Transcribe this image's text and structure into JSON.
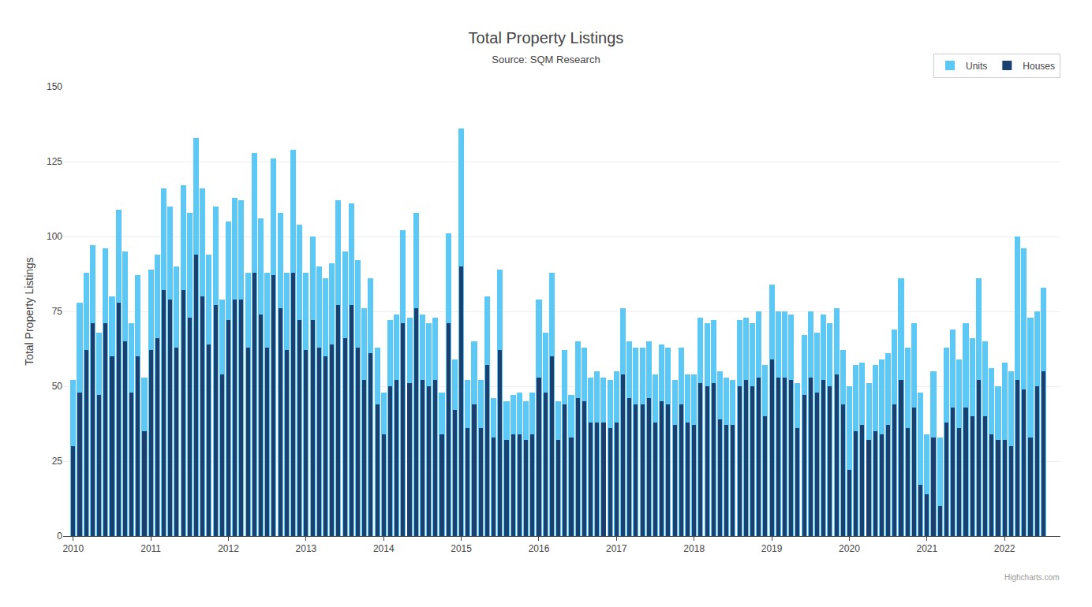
{
  "chart_data": {
    "type": "bar",
    "title": "Total Property Listings",
    "subtitle": "Source: SQM Research",
    "ylabel": "Total Property Listings",
    "annotations": [
      "Highcharts.com"
    ],
    "x": [
      2010,
      2010.083333,
      2010.166667,
      2010.25,
      2010.333333,
      2010.416667,
      2010.5,
      2010.583333,
      2010.666667,
      2010.75,
      2010.833333,
      2010.916667,
      2011,
      2011.083333,
      2011.166667,
      2011.25,
      2011.333333,
      2011.416667,
      2011.5,
      2011.583333,
      2011.666667,
      2011.75,
      2011.833333,
      2011.916667,
      2012,
      2012.083333,
      2012.166667,
      2012.25,
      2012.333333,
      2012.416667,
      2012.5,
      2012.583333,
      2012.666667,
      2012.75,
      2012.833333,
      2012.916667,
      2013,
      2013.083333,
      2013.166667,
      2013.25,
      2013.333333,
      2013.416667,
      2013.5,
      2013.583333,
      2013.666667,
      2013.75,
      2013.833333,
      2013.916667,
      2014,
      2014.083333,
      2014.166667,
      2014.25,
      2014.333333,
      2014.416667,
      2014.5,
      2014.583333,
      2014.666667,
      2014.75,
      2014.833333,
      2014.916667,
      2015,
      2015.083333,
      2015.166667,
      2015.25,
      2015.333333,
      2015.416667,
      2015.5,
      2015.583333,
      2015.666667,
      2015.75,
      2015.833333,
      2015.916667,
      2016,
      2016.083333,
      2016.166667,
      2016.25,
      2016.333333,
      2016.416667,
      2016.5,
      2016.583333,
      2016.666667,
      2016.75,
      2016.833333,
      2016.916667,
      2017,
      2017.083333,
      2017.166667,
      2017.25,
      2017.333333,
      2017.416667,
      2017.5,
      2017.583333,
      2017.666667,
      2017.75,
      2017.833333,
      2017.916667,
      2018,
      2018.083333,
      2018.166667,
      2018.25,
      2018.333333,
      2018.416667,
      2018.5,
      2018.583333,
      2018.666667,
      2018.75,
      2018.833333,
      2018.916667,
      2019,
      2019.083333,
      2019.166667,
      2019.25,
      2019.333333,
      2019.416667,
      2019.5,
      2019.583333,
      2019.666667,
      2019.75,
      2019.833333,
      2019.916667,
      2020,
      2020.083333,
      2020.166667,
      2020.25,
      2020.333333,
      2020.416667,
      2020.5,
      2020.583333,
      2020.666667,
      2020.75,
      2020.833333,
      2020.916667,
      2021,
      2021.083333,
      2021.166667,
      2021.25,
      2021.333333,
      2021.416667,
      2021.5,
      2021.583333,
      2021.666667,
      2021.75,
      2021.833333,
      2021.916667,
      2022,
      2022.083333,
      2022.166667,
      2022.25,
      2022.333333,
      2022.416667,
      2022.5
    ],
    "series": [
      {
        "name": "Units",
        "color": "#5BC8F5",
        "values": [
          52,
          78,
          88,
          97,
          68,
          96,
          80,
          109,
          95,
          71,
          87,
          53,
          89,
          94,
          116,
          110,
          90,
          117,
          108,
          133,
          116,
          94,
          110,
          79,
          105,
          113,
          112,
          88,
          128,
          106,
          88,
          126,
          108,
          88,
          129,
          104,
          88,
          100,
          90,
          86,
          91,
          112,
          95,
          111,
          92,
          76,
          86,
          63,
          48,
          72,
          74,
          102,
          73,
          108,
          74,
          71,
          73,
          48,
          101,
          59,
          136,
          52,
          65,
          52,
          80,
          46,
          89,
          45,
          47,
          48,
          45,
          48,
          79,
          68,
          88,
          45,
          62,
          47,
          65,
          63,
          53,
          55,
          53,
          52,
          55,
          76,
          65,
          63,
          63,
          65,
          54,
          64,
          63,
          52,
          63,
          54,
          54,
          73,
          71,
          72,
          55,
          53,
          52,
          72,
          73,
          71,
          75,
          57,
          84,
          75,
          75,
          74,
          51,
          67,
          75,
          68,
          74,
          71,
          76,
          62,
          50,
          57,
          58,
          51,
          57,
          59,
          61,
          69,
          86,
          63,
          71,
          48,
          34,
          55,
          33,
          63,
          69,
          59,
          71,
          66,
          86,
          65,
          56,
          50,
          58,
          55,
          100,
          96,
          73,
          75,
          83
        ]
      },
      {
        "name": "Houses",
        "color": "#1B3F6E",
        "values": [
          30,
          48,
          62,
          71,
          47,
          71,
          60,
          78,
          65,
          48,
          60,
          35,
          62,
          66,
          82,
          79,
          63,
          82,
          73,
          94,
          80,
          64,
          77,
          54,
          72,
          79,
          79,
          63,
          88,
          74,
          63,
          87,
          76,
          62,
          88,
          72,
          62,
          72,
          63,
          60,
          64,
          77,
          66,
          77,
          63,
          52,
          61,
          44,
          34,
          50,
          52,
          71,
          51,
          76,
          52,
          50,
          52,
          34,
          71,
          42,
          90,
          36,
          44,
          36,
          57,
          33,
          62,
          32,
          34,
          34,
          32,
          34,
          53,
          48,
          60,
          32,
          44,
          33,
          46,
          45,
          38,
          38,
          38,
          36,
          38,
          54,
          46,
          44,
          44,
          46,
          38,
          45,
          44,
          37,
          44,
          38,
          37,
          51,
          50,
          51,
          39,
          37,
          37,
          50,
          52,
          50,
          53,
          40,
          59,
          53,
          53,
          52,
          36,
          47,
          53,
          48,
          52,
          50,
          54,
          44,
          22,
          35,
          37,
          32,
          35,
          34,
          37,
          44,
          52,
          36,
          43,
          17,
          14,
          33,
          10,
          38,
          43,
          36,
          43,
          40,
          52,
          40,
          34,
          32,
          32,
          30,
          52,
          49,
          33,
          50,
          55
        ]
      }
    ],
    "xlim": [
      2009.87,
      2022.72
    ],
    "xticks": [
      2010,
      2011,
      2012,
      2013,
      2014,
      2015,
      2016,
      2017,
      2018,
      2019,
      2020,
      2021,
      2022
    ],
    "ylim": [
      0,
      150
    ],
    "yticks": [
      0,
      25,
      50,
      75,
      100,
      125,
      150
    ],
    "grid": true,
    "legend": "upper right"
  }
}
